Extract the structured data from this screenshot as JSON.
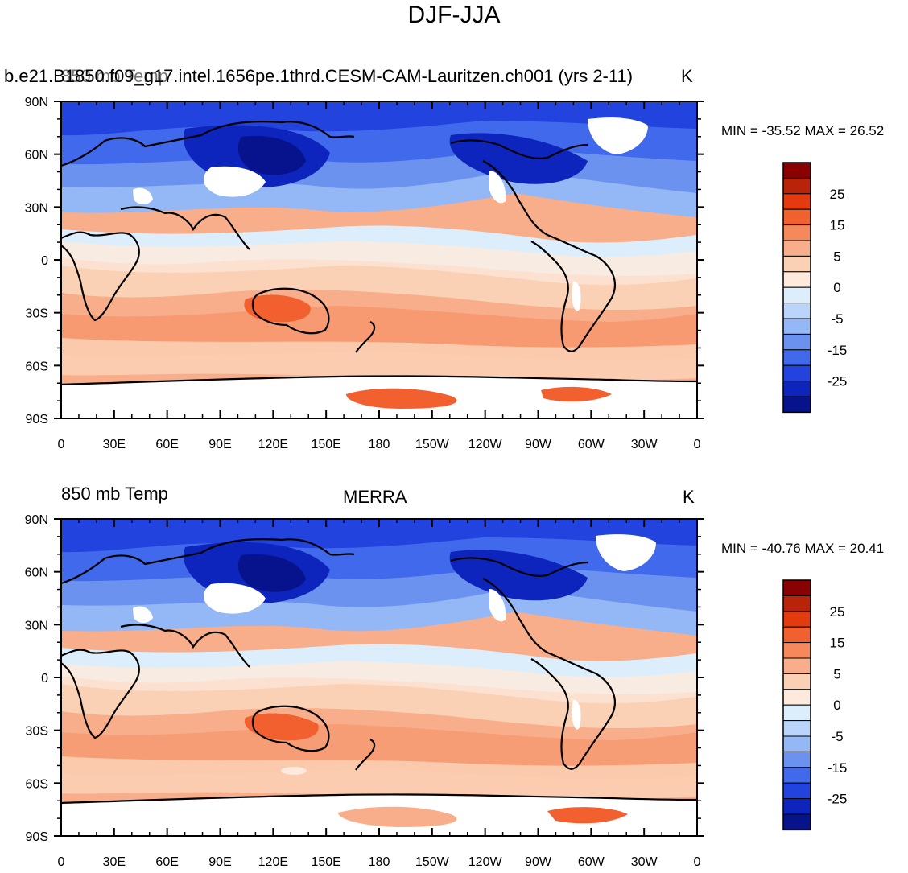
{
  "title": "DJF-JJA",
  "panels": [
    {
      "left_string": "b.e21.B1850.f09_g17.intel.1656pe.1thrd.CESM-CAM-Lauritzen.ch001 (yrs 2-11)",
      "overlap_string": "850 mb Temp",
      "center_string": "",
      "right_string": "K",
      "stats": "MIN = -35.52 MAX =  26.52"
    },
    {
      "left_string": "850 mb Temp",
      "center_string": "MERRA",
      "right_string": "K",
      "stats": "MIN = -40.76 MAX =  20.41"
    }
  ],
  "x_ticks": [
    "0",
    "30E",
    "60E",
    "90E",
    "120E",
    "150E",
    "180",
    "150W",
    "120W",
    "90W",
    "60W",
    "30W",
    "0"
  ],
  "y_ticks": [
    "90N",
    "60N",
    "30N",
    "0",
    "30S",
    "60S",
    "90S"
  ],
  "colorbar": {
    "labels": [
      "25",
      "15",
      "5",
      "0",
      "-5",
      "-15",
      "-25"
    ],
    "colors": [
      "#8b0000",
      "#b8230a",
      "#e53a10",
      "#f26030",
      "#f6895c",
      "#f8ae8a",
      "#fbd1b6",
      "#fdeadc",
      "#dceefc",
      "#bbd5fa",
      "#94b7f5",
      "#6b92ef",
      "#4169ec",
      "#2243de",
      "#0d25bd",
      "#06138c"
    ]
  },
  "colors": {
    "very_cold": "#06138c",
    "cold": "#2243de",
    "cool": "#94b7f5",
    "mild": "#dceefc",
    "warm": "#f8ae8a",
    "hot": "#e53a10",
    "missing": "#ffffff",
    "coast": "#000000"
  }
}
